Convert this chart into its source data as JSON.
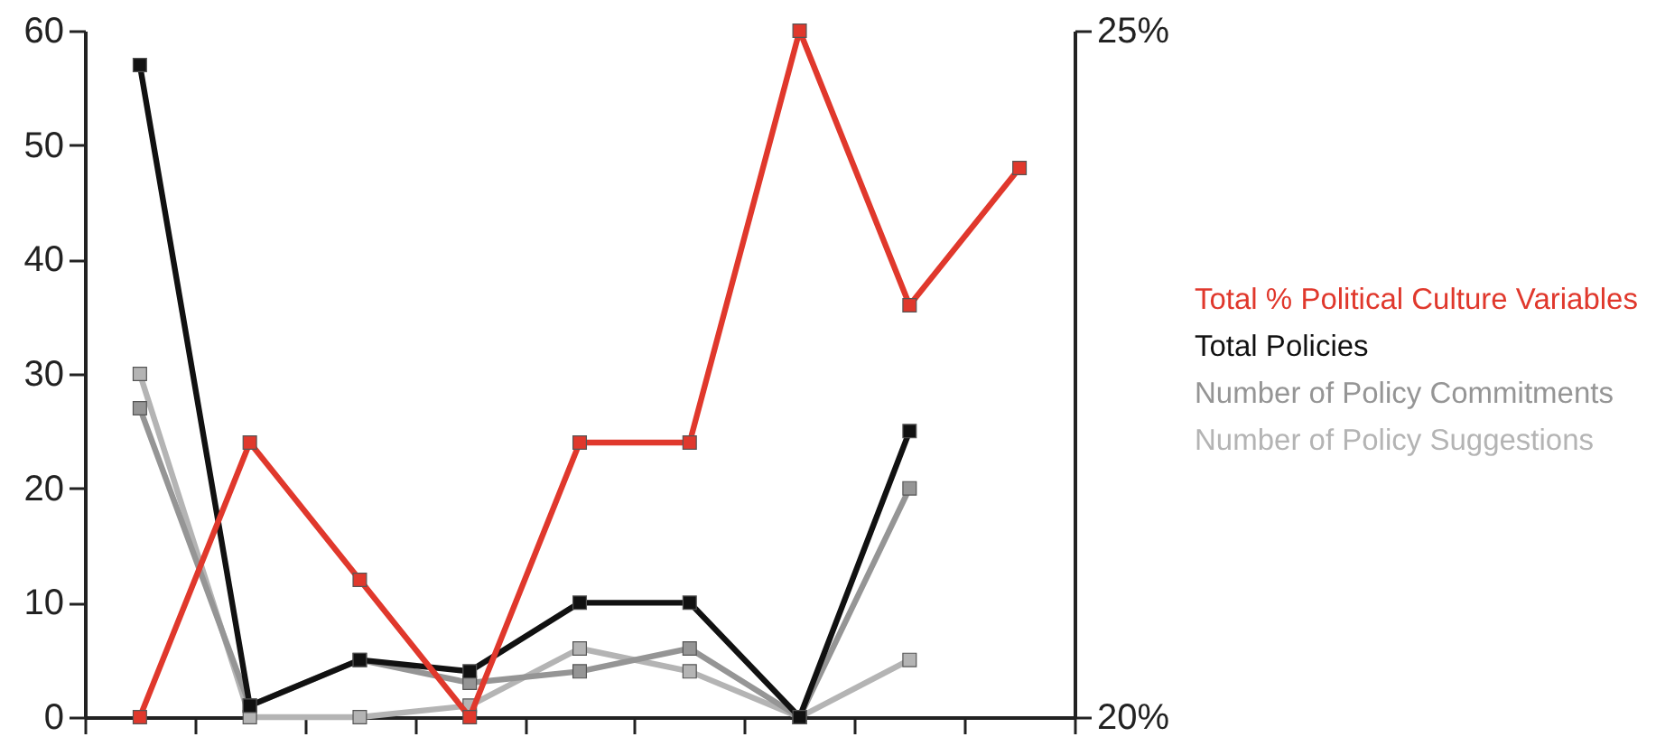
{
  "chart_data": {
    "type": "line",
    "categories": [
      null,
      null,
      null,
      null,
      null,
      null,
      null,
      null,
      null
    ],
    "series": [
      {
        "name": "Total % Political Culture Variables",
        "color": "#e0382c",
        "axis": "y2",
        "values": [
          20,
          22,
          21,
          20,
          22,
          22,
          25,
          23,
          24
        ]
      },
      {
        "name": "Total Policies",
        "color": "#111111",
        "values": [
          57,
          1,
          5,
          4,
          10,
          10,
          0,
          25,
          null
        ]
      },
      {
        "name": "Number of Policy Commitments",
        "color": "#959595",
        "values": [
          27,
          1,
          5,
          3,
          4,
          6,
          0,
          20,
          null
        ]
      },
      {
        "name": "Number of Policy Suggestions",
        "color": "#b4b4b4",
        "values": [
          30,
          0,
          0,
          1,
          6,
          4,
          0,
          5,
          null
        ]
      }
    ],
    "ylim": [
      0,
      60
    ],
    "yticks": [
      0,
      10,
      20,
      30,
      40,
      50,
      60
    ],
    "y2lim": [
      20,
      25
    ],
    "y2ticks": [
      {
        "value": 20,
        "label": "20%"
      },
      {
        "value": 25,
        "label": "25%"
      }
    ],
    "grid": false,
    "legend": "right",
    "marker": "square",
    "line_style": "solid"
  }
}
